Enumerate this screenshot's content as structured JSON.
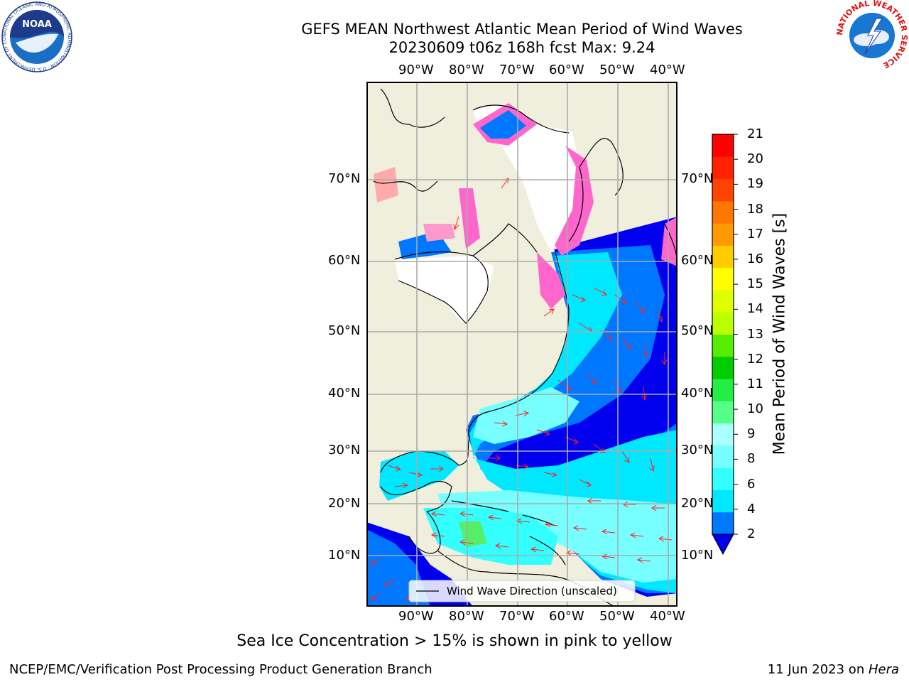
{
  "header": {
    "title_line1": "GEFS MEAN Northwest Atlantic Mean Period of Wind Waves",
    "title_line2": "20230609 t06z 168h fcst   Max: 9.24"
  },
  "logos": {
    "noaa_text": "NOAA",
    "noaa_ring_text": "NATIONAL OCEANIC AND ATMOSPHERIC ADMINISTRATION · U.S. DEPARTMENT OF COMMERCE",
    "nws_ring_text": "NATIONAL WEATHER SERVICE"
  },
  "map": {
    "lon_labels": [
      "90°W",
      "80°W",
      "70°W",
      "60°W",
      "50°W",
      "40°W"
    ],
    "lat_labels": [
      "70°N",
      "60°N",
      "50°N",
      "40°N",
      "30°N",
      "20°N",
      "10°N"
    ],
    "legend_label": "Wind Wave Direction (unscaled)"
  },
  "colorbar": {
    "label": "Mean Period of Wind Waves [s]",
    "ticks": [
      "2",
      "4",
      "6",
      "8",
      "9",
      "10",
      "11",
      "12",
      "13",
      "14",
      "15",
      "16",
      "17",
      "18",
      "19",
      "20",
      "21"
    ],
    "colors": [
      "#0077ff",
      "#00e8ff",
      "#33ffff",
      "#77ffff",
      "#aaffff",
      "#55ff88",
      "#22ee44",
      "#00cc00",
      "#55ee00",
      "#bbff00",
      "#ddff00",
      "#ffff00",
      "#ffcc00",
      "#ff9900",
      "#ff7700",
      "#ff4400",
      "#ff2200",
      "#ff0000"
    ],
    "under_color": "#0000ee"
  },
  "footer": {
    "caption": "Sea Ice Concentration > 15% is shown in pink to yellow",
    "left": "NCEP/EMC/Verification Post Processing Product Generation Branch",
    "right_date": "11 Jun 2023 on ",
    "right_host": "Hera"
  }
}
